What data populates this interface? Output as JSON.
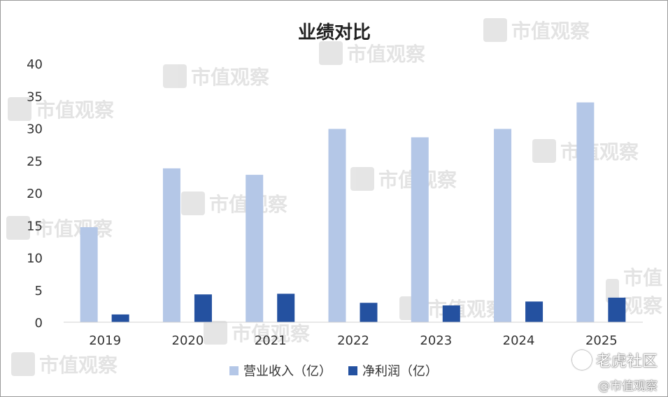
{
  "chart_data": {
    "type": "bar",
    "title": "业绩对比",
    "categories": [
      "2019",
      "2020",
      "2021",
      "2022",
      "2023",
      "2024",
      "2025"
    ],
    "series": [
      {
        "name": "营业收入（亿）",
        "values": [
          14.7,
          23.8,
          22.8,
          29.9,
          28.6,
          29.9,
          34.0
        ],
        "color": "#b4c7e7"
      },
      {
        "name": "净利润（亿）",
        "values": [
          1.2,
          4.3,
          4.4,
          3.0,
          2.6,
          3.2,
          3.8
        ],
        "color": "#2451a0"
      }
    ],
    "ylim": [
      0,
      40
    ],
    "yticks": [
      0,
      5,
      10,
      15,
      20,
      25,
      30,
      35,
      40
    ],
    "xlabel": "",
    "ylabel": "",
    "grid": false,
    "legend": "bottom"
  },
  "watermark": {
    "text": "市值观察"
  },
  "credits": {
    "platform": "老虎社区",
    "author": "@市值观察"
  }
}
